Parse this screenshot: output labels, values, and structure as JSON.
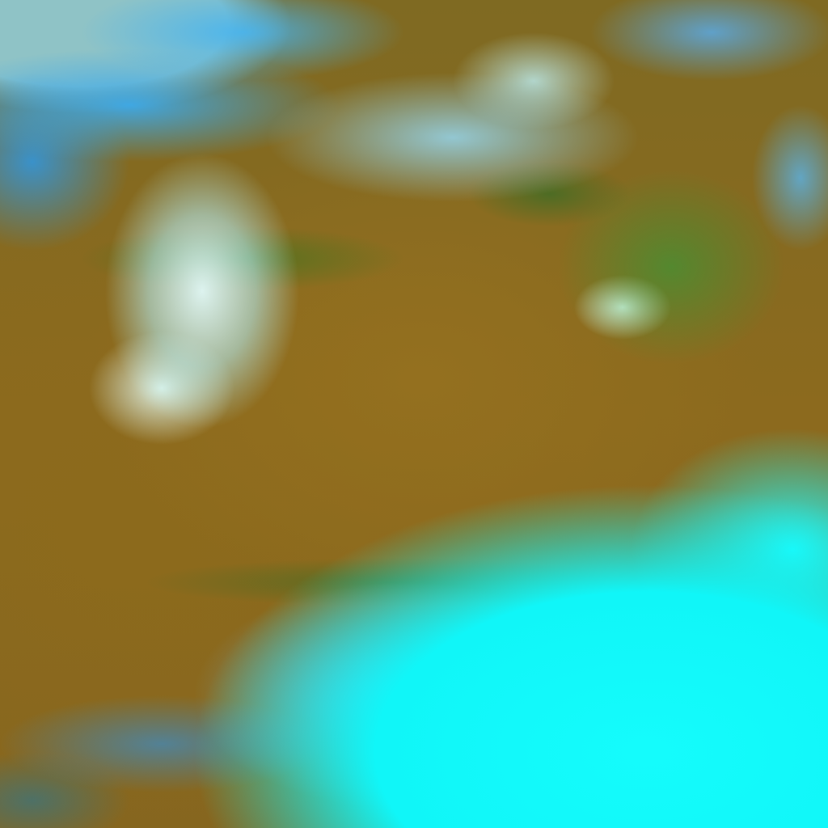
{
  "image": {
    "kind": "false-color satellite image",
    "colors": {
      "land": "#8a6620",
      "sea": "#8fc3c6",
      "snow_cyan": "#14fcfc",
      "cloud_blue": "#3caaeb",
      "vegetation": "#28a03c",
      "snow_white": "#e1fafa"
    }
  }
}
